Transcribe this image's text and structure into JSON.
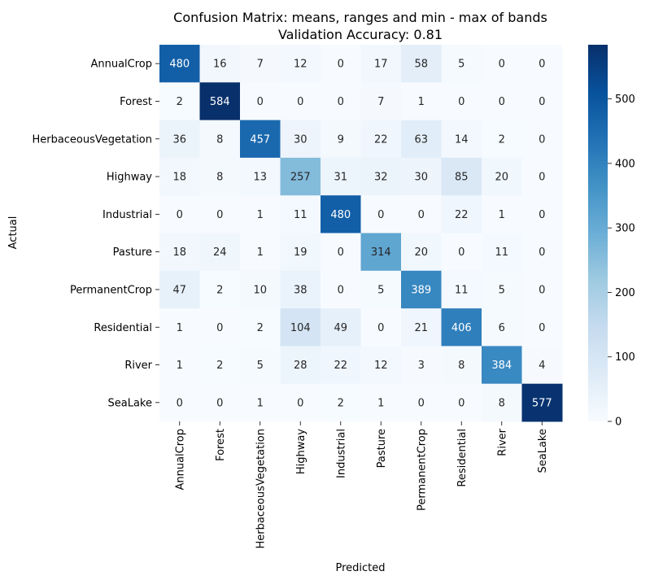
{
  "chart_data": {
    "type": "heatmap",
    "title": "Confusion Matrix: means, ranges and min - max of bands",
    "subtitle": "Validation Accuracy: 0.81",
    "xlabel": "Predicted",
    "ylabel": "Actual",
    "row_labels": [
      "AnnualCrop",
      "Forest",
      "HerbaceousVegetation",
      "Highway",
      "Industrial",
      "Pasture",
      "PermanentCrop",
      "Residential",
      "River",
      "SeaLake"
    ],
    "col_labels": [
      "AnnualCrop",
      "Forest",
      "HerbaceousVegetation",
      "Highway",
      "Industrial",
      "Pasture",
      "PermanentCrop",
      "Residential",
      "River",
      "SeaLake"
    ],
    "values": [
      [
        480,
        16,
        7,
        12,
        0,
        17,
        58,
        5,
        0,
        0
      ],
      [
        2,
        584,
        0,
        0,
        0,
        7,
        1,
        0,
        0,
        0
      ],
      [
        36,
        8,
        457,
        30,
        9,
        22,
        63,
        14,
        2,
        0
      ],
      [
        18,
        8,
        13,
        257,
        31,
        32,
        30,
        85,
        20,
        0
      ],
      [
        0,
        0,
        1,
        11,
        480,
        0,
        0,
        22,
        1,
        0
      ],
      [
        18,
        24,
        1,
        19,
        0,
        314,
        20,
        0,
        11,
        0
      ],
      [
        47,
        2,
        10,
        38,
        0,
        5,
        389,
        11,
        5,
        0
      ],
      [
        1,
        0,
        2,
        104,
        49,
        0,
        21,
        406,
        6,
        0
      ],
      [
        1,
        2,
        5,
        28,
        22,
        12,
        3,
        8,
        384,
        4
      ],
      [
        0,
        0,
        1,
        0,
        2,
        1,
        0,
        0,
        8,
        577
      ]
    ],
    "colormap": "Blues",
    "colorbar": {
      "min": 0,
      "max": 584,
      "ticks": [
        0,
        100,
        200,
        300,
        400,
        500
      ]
    },
    "annotations": true,
    "grid": false
  }
}
